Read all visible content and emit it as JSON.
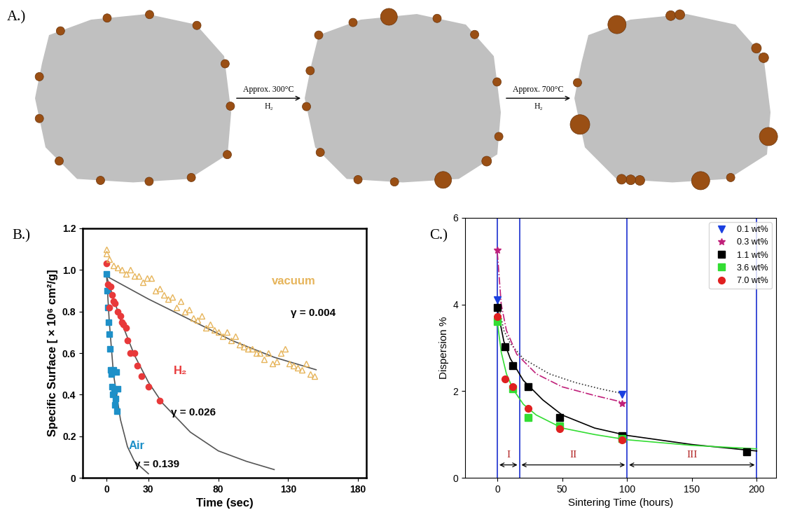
{
  "diagram": {
    "label": "A.)",
    "steps": [
      {
        "above": "Approx. 300°C",
        "below": "H₂"
      },
      {
        "above": "Approx. 700°C",
        "below": "H₂"
      }
    ]
  },
  "chart_data": [
    {
      "type": "scatter",
      "panel": "B.)",
      "x_label": "Time (sec)",
      "y_label": "Specific Surface [ × 10⁶ cm²/g]",
      "xlim": [
        -17,
        186
      ],
      "ylim": [
        0,
        1.2
      ],
      "xticks": [
        0,
        30,
        80,
        130,
        180
      ],
      "yticks": [
        0,
        0.2,
        0.4,
        0.6,
        0.8,
        1.0,
        1.2
      ],
      "series": [
        {
          "name": "Air",
          "color": "#1e90c8",
          "marker": "square",
          "annotation": "γ = 0.139",
          "x": [
            0,
            0.5,
            1,
            1.5,
            2,
            2.5,
            3,
            3.5,
            4,
            4.5,
            5,
            5.5,
            6,
            6.5,
            7,
            7.5,
            8
          ],
          "values": [
            0.98,
            0.9,
            0.82,
            0.75,
            0.69,
            0.62,
            0.52,
            0.5,
            0.44,
            0.4,
            0.52,
            0.42,
            0.35,
            0.38,
            0.51,
            0.32,
            0.43
          ],
          "fit": {
            "color": "#555555",
            "line_style": "solid",
            "x": [
              0,
              2,
              5,
              10,
              15,
              20,
              30
            ],
            "values": [
              0.98,
              0.75,
              0.5,
              0.28,
              0.15,
              0.08,
              0.02
            ]
          }
        },
        {
          "name": "H₂",
          "color": "#e8393a",
          "marker": "circle",
          "annotation": "γ = 0.026",
          "x": [
            0,
            1,
            2,
            3,
            4,
            5,
            6,
            8,
            10,
            11,
            12,
            14,
            15,
            17,
            20,
            22,
            25,
            30,
            38
          ],
          "values": [
            1.03,
            0.93,
            0.82,
            0.92,
            0.88,
            0.85,
            0.84,
            0.8,
            0.78,
            0.75,
            0.74,
            0.72,
            0.66,
            0.6,
            0.6,
            0.54,
            0.49,
            0.44,
            0.37
          ],
          "fit": {
            "color": "#555555",
            "line_style": "solid",
            "x": [
              0,
              10,
              20,
              30,
              40,
              60,
              80,
              100,
              120
            ],
            "values": [
              0.97,
              0.76,
              0.59,
              0.46,
              0.36,
              0.22,
              0.13,
              0.08,
              0.04
            ]
          }
        },
        {
          "name": "vacuum",
          "color": "#e6b45a",
          "marker": "open_triangle",
          "annotation": "γ = 0.004",
          "x": [
            0,
            0,
            2,
            5,
            8,
            11,
            14,
            17,
            20,
            23,
            26,
            29,
            32,
            35,
            38,
            41,
            44,
            47,
            50,
            53,
            56,
            59,
            62,
            65,
            68,
            71,
            74,
            77,
            80,
            83,
            86,
            89,
            92,
            95,
            98,
            101,
            104,
            107,
            110,
            113,
            116,
            119,
            122,
            125,
            128,
            131,
            134,
            137,
            140,
            143,
            146,
            149
          ],
          "values": [
            1.1,
            1.08,
            1.05,
            1.02,
            1.01,
            1.0,
            0.98,
            1.0,
            0.97,
            0.97,
            0.94,
            0.96,
            0.96,
            0.9,
            0.91,
            0.88,
            0.86,
            0.87,
            0.82,
            0.85,
            0.8,
            0.81,
            0.77,
            0.76,
            0.78,
            0.72,
            0.74,
            0.71,
            0.7,
            0.68,
            0.7,
            0.66,
            0.68,
            0.64,
            0.63,
            0.62,
            0.62,
            0.6,
            0.6,
            0.57,
            0.6,
            0.55,
            0.56,
            0.6,
            0.62,
            0.55,
            0.54,
            0.53,
            0.52,
            0.55,
            0.5,
            0.49
          ],
          "fit": {
            "color": "#555555",
            "line_style": "solid",
            "x": [
              0,
              30,
              60,
              90,
              120,
              150
            ],
            "values": [
              0.97,
              0.86,
              0.76,
              0.66,
              0.58,
              0.52
            ]
          }
        }
      ]
    },
    {
      "type": "scatter",
      "panel": "C.)",
      "x_label": "Sintering Time (hours)",
      "y_label": "Dispersion %",
      "xlim": [
        -25,
        215
      ],
      "ylim": [
        0,
        6
      ],
      "xticks": [
        0,
        50,
        100,
        150,
        200
      ],
      "yticks": [
        0,
        2,
        4,
        6
      ],
      "legend": "upper right",
      "regions": [
        {
          "label": "I",
          "from": 0,
          "to": 17
        },
        {
          "label": "II",
          "from": 17,
          "to": 100
        },
        {
          "label": "III",
          "from": 100,
          "to": 200
        }
      ],
      "series": [
        {
          "name": "0.1 wt%",
          "color": "#1a3fe0",
          "marker": "triangle_down",
          "x": [
            0,
            96
          ],
          "values": [
            4.1,
            1.93
          ],
          "fit": {
            "color": "#333333",
            "line_style": "dotted",
            "x": [
              0,
              5,
              10,
              20,
              40,
              60,
              80,
              96
            ],
            "values": [
              4.1,
              3.4,
              3.1,
              2.75,
              2.4,
              2.2,
              2.05,
              1.95
            ]
          }
        },
        {
          "name": "0.3 wt%",
          "color": "#c0207a",
          "marker": "star",
          "x": [
            0,
            96
          ],
          "values": [
            5.25,
            1.72
          ],
          "fit": {
            "color": "#c0207a",
            "line_style": "dashdot",
            "x": [
              0,
              3,
              7,
              15,
              30,
              50,
              75,
              96
            ],
            "values": [
              5.2,
              4.0,
              3.4,
              2.85,
              2.4,
              2.1,
              1.9,
              1.75
            ]
          }
        },
        {
          "name": "1.1 wt%",
          "color": "#000000",
          "marker": "square",
          "x": [
            0,
            6,
            12,
            24,
            48,
            96,
            192
          ],
          "values": [
            3.93,
            3.03,
            2.58,
            2.1,
            1.4,
            0.98,
            0.6
          ],
          "fit": {
            "color": "#000000",
            "line_style": "solid",
            "x": [
              0,
              5,
              10,
              20,
              35,
              50,
              75,
              100,
              150,
              200
            ],
            "values": [
              3.9,
              3.15,
              2.75,
              2.25,
              1.8,
              1.45,
              1.15,
              0.98,
              0.77,
              0.62
            ]
          }
        },
        {
          "name": "3.6 wt%",
          "color": "#33dd33",
          "marker": "square",
          "x": [
            0,
            12,
            24,
            48,
            96
          ],
          "values": [
            3.6,
            2.05,
            1.4,
            1.2,
            0.9
          ],
          "fit": {
            "color": "#33dd33",
            "line_style": "solid",
            "x": [
              0,
              3,
              7,
              12,
              20,
              30,
              50,
              75,
              100,
              150,
              200
            ],
            "values": [
              3.6,
              2.9,
              2.4,
              2.05,
              1.7,
              1.45,
              1.15,
              1.0,
              0.88,
              0.75,
              0.67
            ]
          }
        },
        {
          "name": "7.0 wt%",
          "color": "#e02020",
          "marker": "circle",
          "x": [
            0,
            6,
            12,
            24,
            48,
            96
          ],
          "values": [
            3.72,
            2.28,
            2.1,
            1.6,
            1.13,
            0.87
          ]
        }
      ]
    }
  ]
}
